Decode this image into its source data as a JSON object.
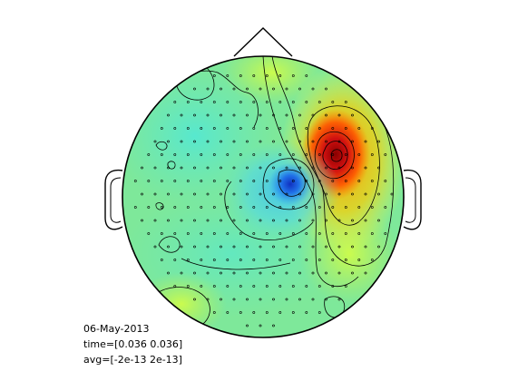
{
  "figure": {
    "type": "topographic-head-map",
    "background_color": "#ffffff",
    "outline_color": "#000000",
    "colormap": "jet",
    "contours": true,
    "sensor_markers": true
  },
  "sources": [
    {
      "name": "positive-peak",
      "polarity": "positive",
      "color": "#8b0000"
    },
    {
      "name": "negative-peak",
      "polarity": "negative",
      "color": "#1f3fbf"
    }
  ],
  "info": {
    "date": "06-May-2013",
    "time": "time=[0.036 0.036]",
    "avg": "avg=[-2e-13 2e-13]"
  }
}
